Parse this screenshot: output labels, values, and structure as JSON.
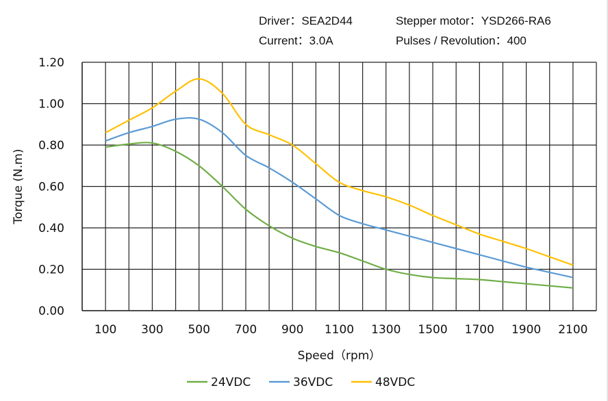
{
  "header": {
    "driver": "Driver：SEA2D44",
    "motor": "Stepper motor：YSD266-RA6",
    "current": "Current：3.0A",
    "pulses": "Pulses / Revolution：400"
  },
  "chart_data": {
    "type": "line",
    "title": "",
    "xlabel": "Speed（rpm）",
    "ylabel": "Torque (N.m)",
    "xlim": [
      0,
      2200
    ],
    "ylim": [
      0,
      1.2
    ],
    "x_ticks": [
      100,
      300,
      500,
      700,
      900,
      1100,
      1300,
      1500,
      1700,
      1900,
      2100
    ],
    "x_tick_labels": [
      "100",
      "300",
      "500",
      "700",
      "900",
      "1100",
      "1300",
      "1500",
      "1700",
      "1900",
      "2100"
    ],
    "y_ticks": [
      0,
      0.2,
      0.4,
      0.6,
      0.8,
      1.0,
      1.2
    ],
    "y_tick_labels": [
      "0.00",
      "0.20",
      "0.40",
      "0.60",
      "0.80",
      "1.00",
      "1.20"
    ],
    "grid": true,
    "legend_position": "bottom",
    "x": [
      100,
      200,
      300,
      400,
      500,
      600,
      700,
      800,
      900,
      1000,
      1100,
      1200,
      1300,
      1400,
      1500,
      1600,
      1700,
      1800,
      1900,
      2000,
      2100
    ],
    "series": [
      {
        "name": "24VDC",
        "color": "#70ad47",
        "values": [
          0.79,
          0.805,
          0.81,
          0.77,
          0.7,
          0.6,
          0.49,
          0.41,
          0.35,
          0.31,
          0.28,
          0.24,
          0.2,
          0.175,
          0.16,
          0.155,
          0.15,
          0.14,
          0.13,
          0.12,
          0.11
        ]
      },
      {
        "name": "36VDC",
        "color": "#5b9bd5",
        "values": [
          0.82,
          0.86,
          0.89,
          0.925,
          0.925,
          0.86,
          0.75,
          0.69,
          0.62,
          0.54,
          0.46,
          0.42,
          0.39,
          0.36,
          0.33,
          0.3,
          0.27,
          0.24,
          0.21,
          0.185,
          0.16
        ]
      },
      {
        "name": "48VDC",
        "color": "#ffc000",
        "values": [
          0.86,
          0.92,
          0.98,
          1.06,
          1.12,
          1.05,
          0.9,
          0.85,
          0.8,
          0.71,
          0.62,
          0.58,
          0.55,
          0.51,
          0.46,
          0.415,
          0.37,
          0.335,
          0.3,
          0.26,
          0.22
        ]
      }
    ]
  }
}
